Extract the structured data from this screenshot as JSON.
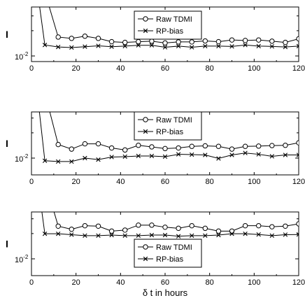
{
  "chart_data": [
    {
      "type": "line",
      "ylabel": "I",
      "xlim": [
        0,
        120
      ],
      "yscale": "log",
      "y_ticks": [
        {
          "value": 0.01,
          "label": "10",
          "exp": "-2"
        }
      ],
      "x_ticks": [
        "0",
        "20",
        "40",
        "60",
        "80",
        "100",
        "120"
      ],
      "xlabel": "",
      "grid": false,
      "legend_position": "top-center",
      "series": [
        {
          "name": "Raw TDMI",
          "marker": "circle",
          "x": [
            0,
            12,
            18,
            24,
            30,
            36,
            42,
            48,
            54,
            60,
            66,
            72,
            78,
            84,
            90,
            96,
            102,
            108,
            114,
            120
          ],
          "y": [
            0.2,
            0.0168,
            0.0162,
            0.0172,
            0.0162,
            0.0148,
            0.0145,
            0.0148,
            0.015,
            0.0143,
            0.0147,
            0.0147,
            0.0151,
            0.0148,
            0.0155,
            0.0153,
            0.0155,
            0.015,
            0.0145,
            0.016
          ]
        },
        {
          "name": "RP-bias",
          "marker": "x",
          "x": [
            0,
            6,
            12,
            18,
            24,
            30,
            36,
            42,
            48,
            54,
            60,
            66,
            72,
            78,
            84,
            90,
            96,
            102,
            108,
            114,
            120
          ],
          "y": [
            0.2,
            0.0135,
            0.0128,
            0.0126,
            0.0129,
            0.0132,
            0.0129,
            0.0131,
            0.0134,
            0.0134,
            0.0127,
            0.0131,
            0.0127,
            0.0131,
            0.0131,
            0.013,
            0.0135,
            0.0131,
            0.013,
            0.0128,
            0.0131
          ]
        }
      ]
    },
    {
      "type": "line",
      "ylabel": "I",
      "xlim": [
        0,
        120
      ],
      "yscale": "log",
      "y_ticks": [
        {
          "value": 0.01,
          "label": "10",
          "exp": "-2"
        }
      ],
      "x_ticks": [
        "0",
        "20",
        "40",
        "60",
        "80",
        "100",
        "120"
      ],
      "xlabel": "",
      "grid": false,
      "legend_position": "top-center",
      "series": [
        {
          "name": "Raw TDMI",
          "marker": "circle",
          "x": [
            0,
            12,
            18,
            24,
            30,
            36,
            42,
            48,
            54,
            60,
            66,
            72,
            78,
            84,
            90,
            96,
            102,
            108,
            114,
            120
          ],
          "y": [
            0.25,
            0.0145,
            0.0128,
            0.0148,
            0.0148,
            0.0132,
            0.0125,
            0.0142,
            0.0136,
            0.013,
            0.0132,
            0.0138,
            0.014,
            0.0138,
            0.0128,
            0.0138,
            0.0139,
            0.0141,
            0.0142,
            0.0152
          ]
        },
        {
          "name": "RP-bias",
          "marker": "x",
          "x": [
            0,
            6,
            12,
            18,
            24,
            30,
            36,
            42,
            48,
            54,
            60,
            66,
            72,
            78,
            84,
            90,
            96,
            102,
            108,
            114,
            120
          ],
          "y": [
            0.25,
            0.0093,
            0.0091,
            0.0091,
            0.01,
            0.0096,
            0.0103,
            0.0104,
            0.0106,
            0.0106,
            0.0104,
            0.0111,
            0.011,
            0.0109,
            0.0099,
            0.0109,
            0.0115,
            0.0111,
            0.0105,
            0.0109,
            0.0109
          ]
        }
      ]
    },
    {
      "type": "line",
      "ylabel": "I",
      "xlim": [
        0,
        120
      ],
      "yscale": "log",
      "y_ticks": [
        {
          "value": 0.01,
          "label": "10",
          "exp": "-2"
        }
      ],
      "x_ticks": [
        "0",
        "20",
        "40",
        "60",
        "80",
        "100",
        "120"
      ],
      "xlabel": "δ t in hours",
      "grid": false,
      "legend_position": "center",
      "series": [
        {
          "name": "Raw TDMI",
          "marker": "circle",
          "x": [
            0,
            12,
            18,
            24,
            30,
            36,
            42,
            48,
            54,
            60,
            66,
            72,
            78,
            84,
            90,
            96,
            102,
            108,
            114,
            120
          ],
          "y": [
            0.3,
            0.0245,
            0.0225,
            0.0248,
            0.0245,
            0.0214,
            0.022,
            0.0252,
            0.0252,
            0.0238,
            0.0231,
            0.0248,
            0.0231,
            0.0214,
            0.0214,
            0.0248,
            0.0248,
            0.0241,
            0.0245,
            0.0261
          ]
        },
        {
          "name": "RP-bias",
          "marker": "x",
          "x": [
            0,
            6,
            12,
            18,
            24,
            30,
            36,
            42,
            48,
            54,
            60,
            66,
            72,
            78,
            84,
            90,
            96,
            102,
            108,
            114,
            120
          ],
          "y": [
            0.3,
            0.0199,
            0.0199,
            0.0194,
            0.0189,
            0.0189,
            0.0192,
            0.0189,
            0.0189,
            0.0192,
            0.0192,
            0.0186,
            0.0189,
            0.0189,
            0.0192,
            0.0199,
            0.0199,
            0.0195,
            0.0189,
            0.0194,
            0.0195
          ]
        }
      ]
    }
  ]
}
